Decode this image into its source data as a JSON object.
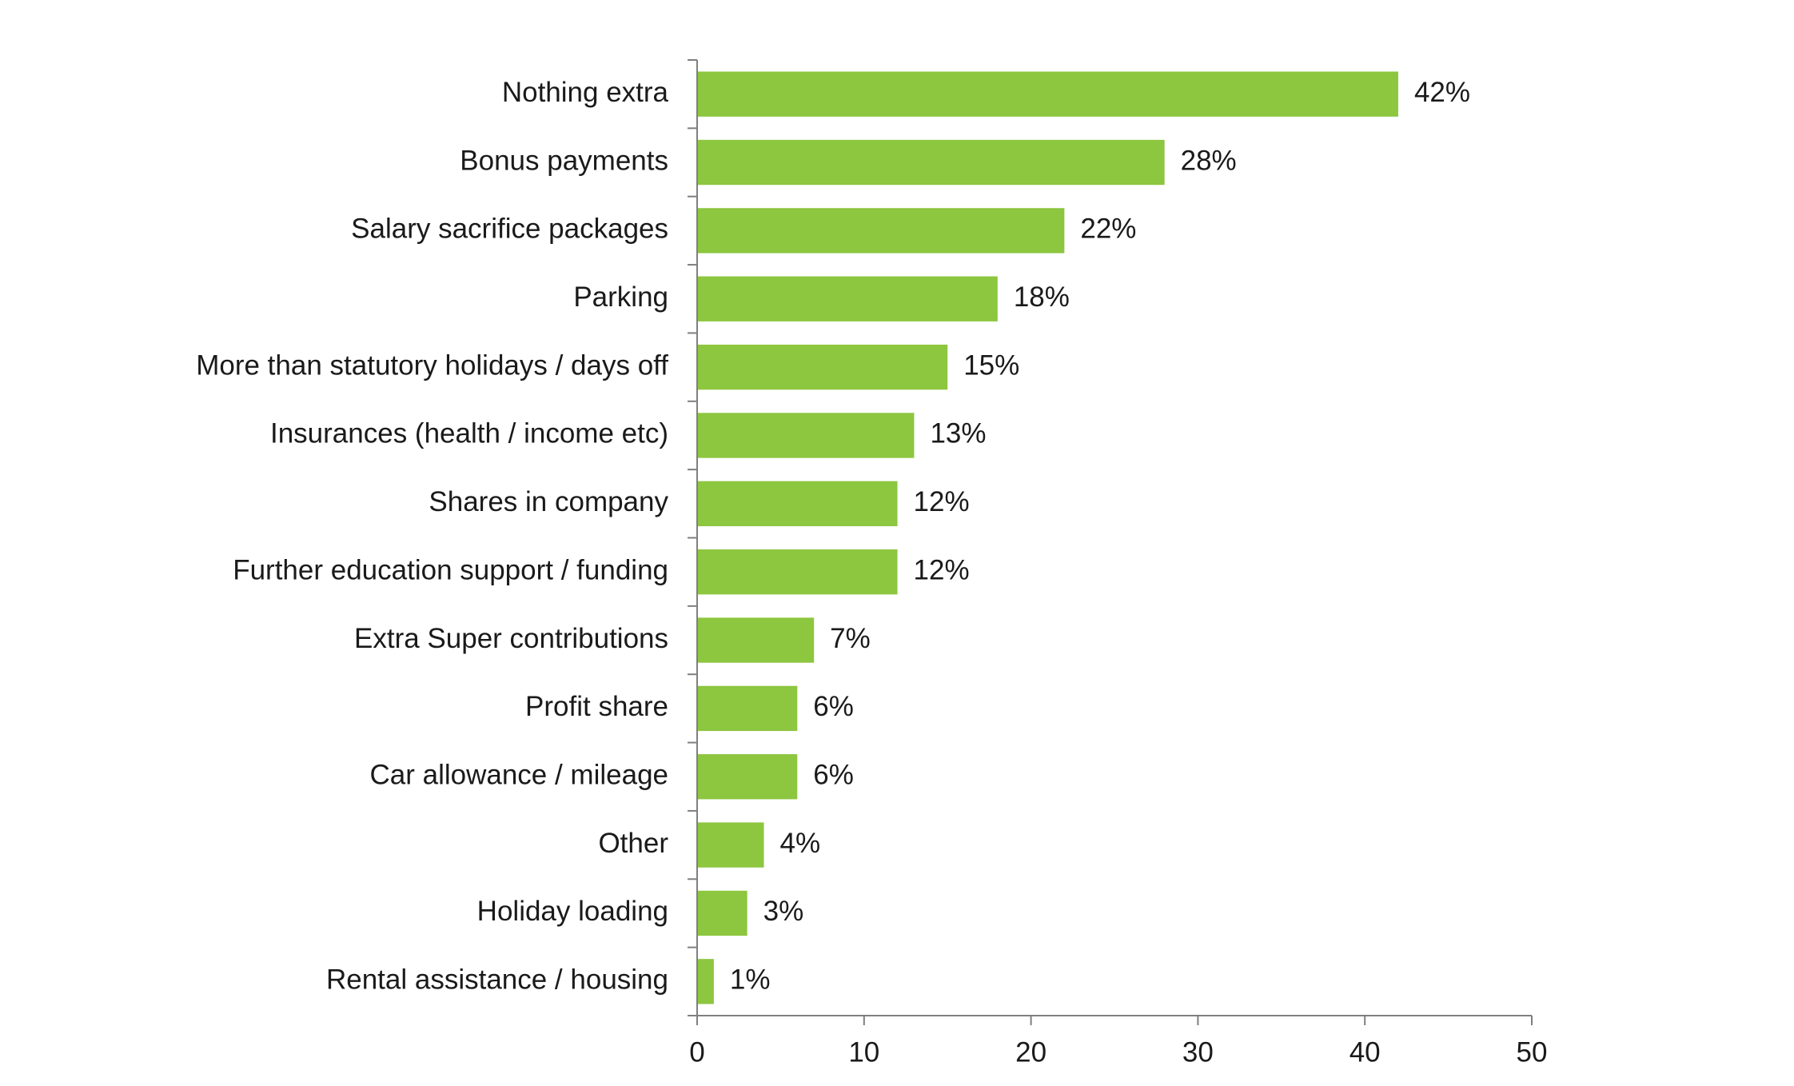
{
  "chart_data": {
    "type": "bar",
    "orientation": "horizontal",
    "title": "",
    "xlabel": "",
    "ylabel": "",
    "categories": [
      "Nothing extra",
      "Bonus payments",
      "Salary sacrifice packages",
      "Parking",
      "More than statutory holidays / days off",
      "Insurances (health / income etc)",
      "Shares in company",
      "Further education support / funding",
      "Extra Super contributions",
      "Profit share",
      "Car allowance / mileage",
      "Other",
      "Holiday loading",
      "Rental assistance / housing"
    ],
    "values": [
      42,
      28,
      22,
      18,
      15,
      13,
      12,
      12,
      7,
      6,
      6,
      4,
      3,
      1
    ],
    "value_labels": [
      "42%",
      "28%",
      "22%",
      "18%",
      "15%",
      "13%",
      "12%",
      "12%",
      "7%",
      "6%",
      "6%",
      "4%",
      "3%",
      "1%"
    ],
    "xlim": [
      0,
      50
    ],
    "xticks": [
      0,
      10,
      20,
      30,
      40,
      50
    ],
    "xtick_labels": [
      "0",
      "10",
      "20",
      "30",
      "40",
      "50"
    ],
    "grid": false,
    "legend": "none",
    "bar_color": "#8dc63f",
    "axis_color": "#7f7f7f",
    "text_color": "#1a1a1a"
  }
}
